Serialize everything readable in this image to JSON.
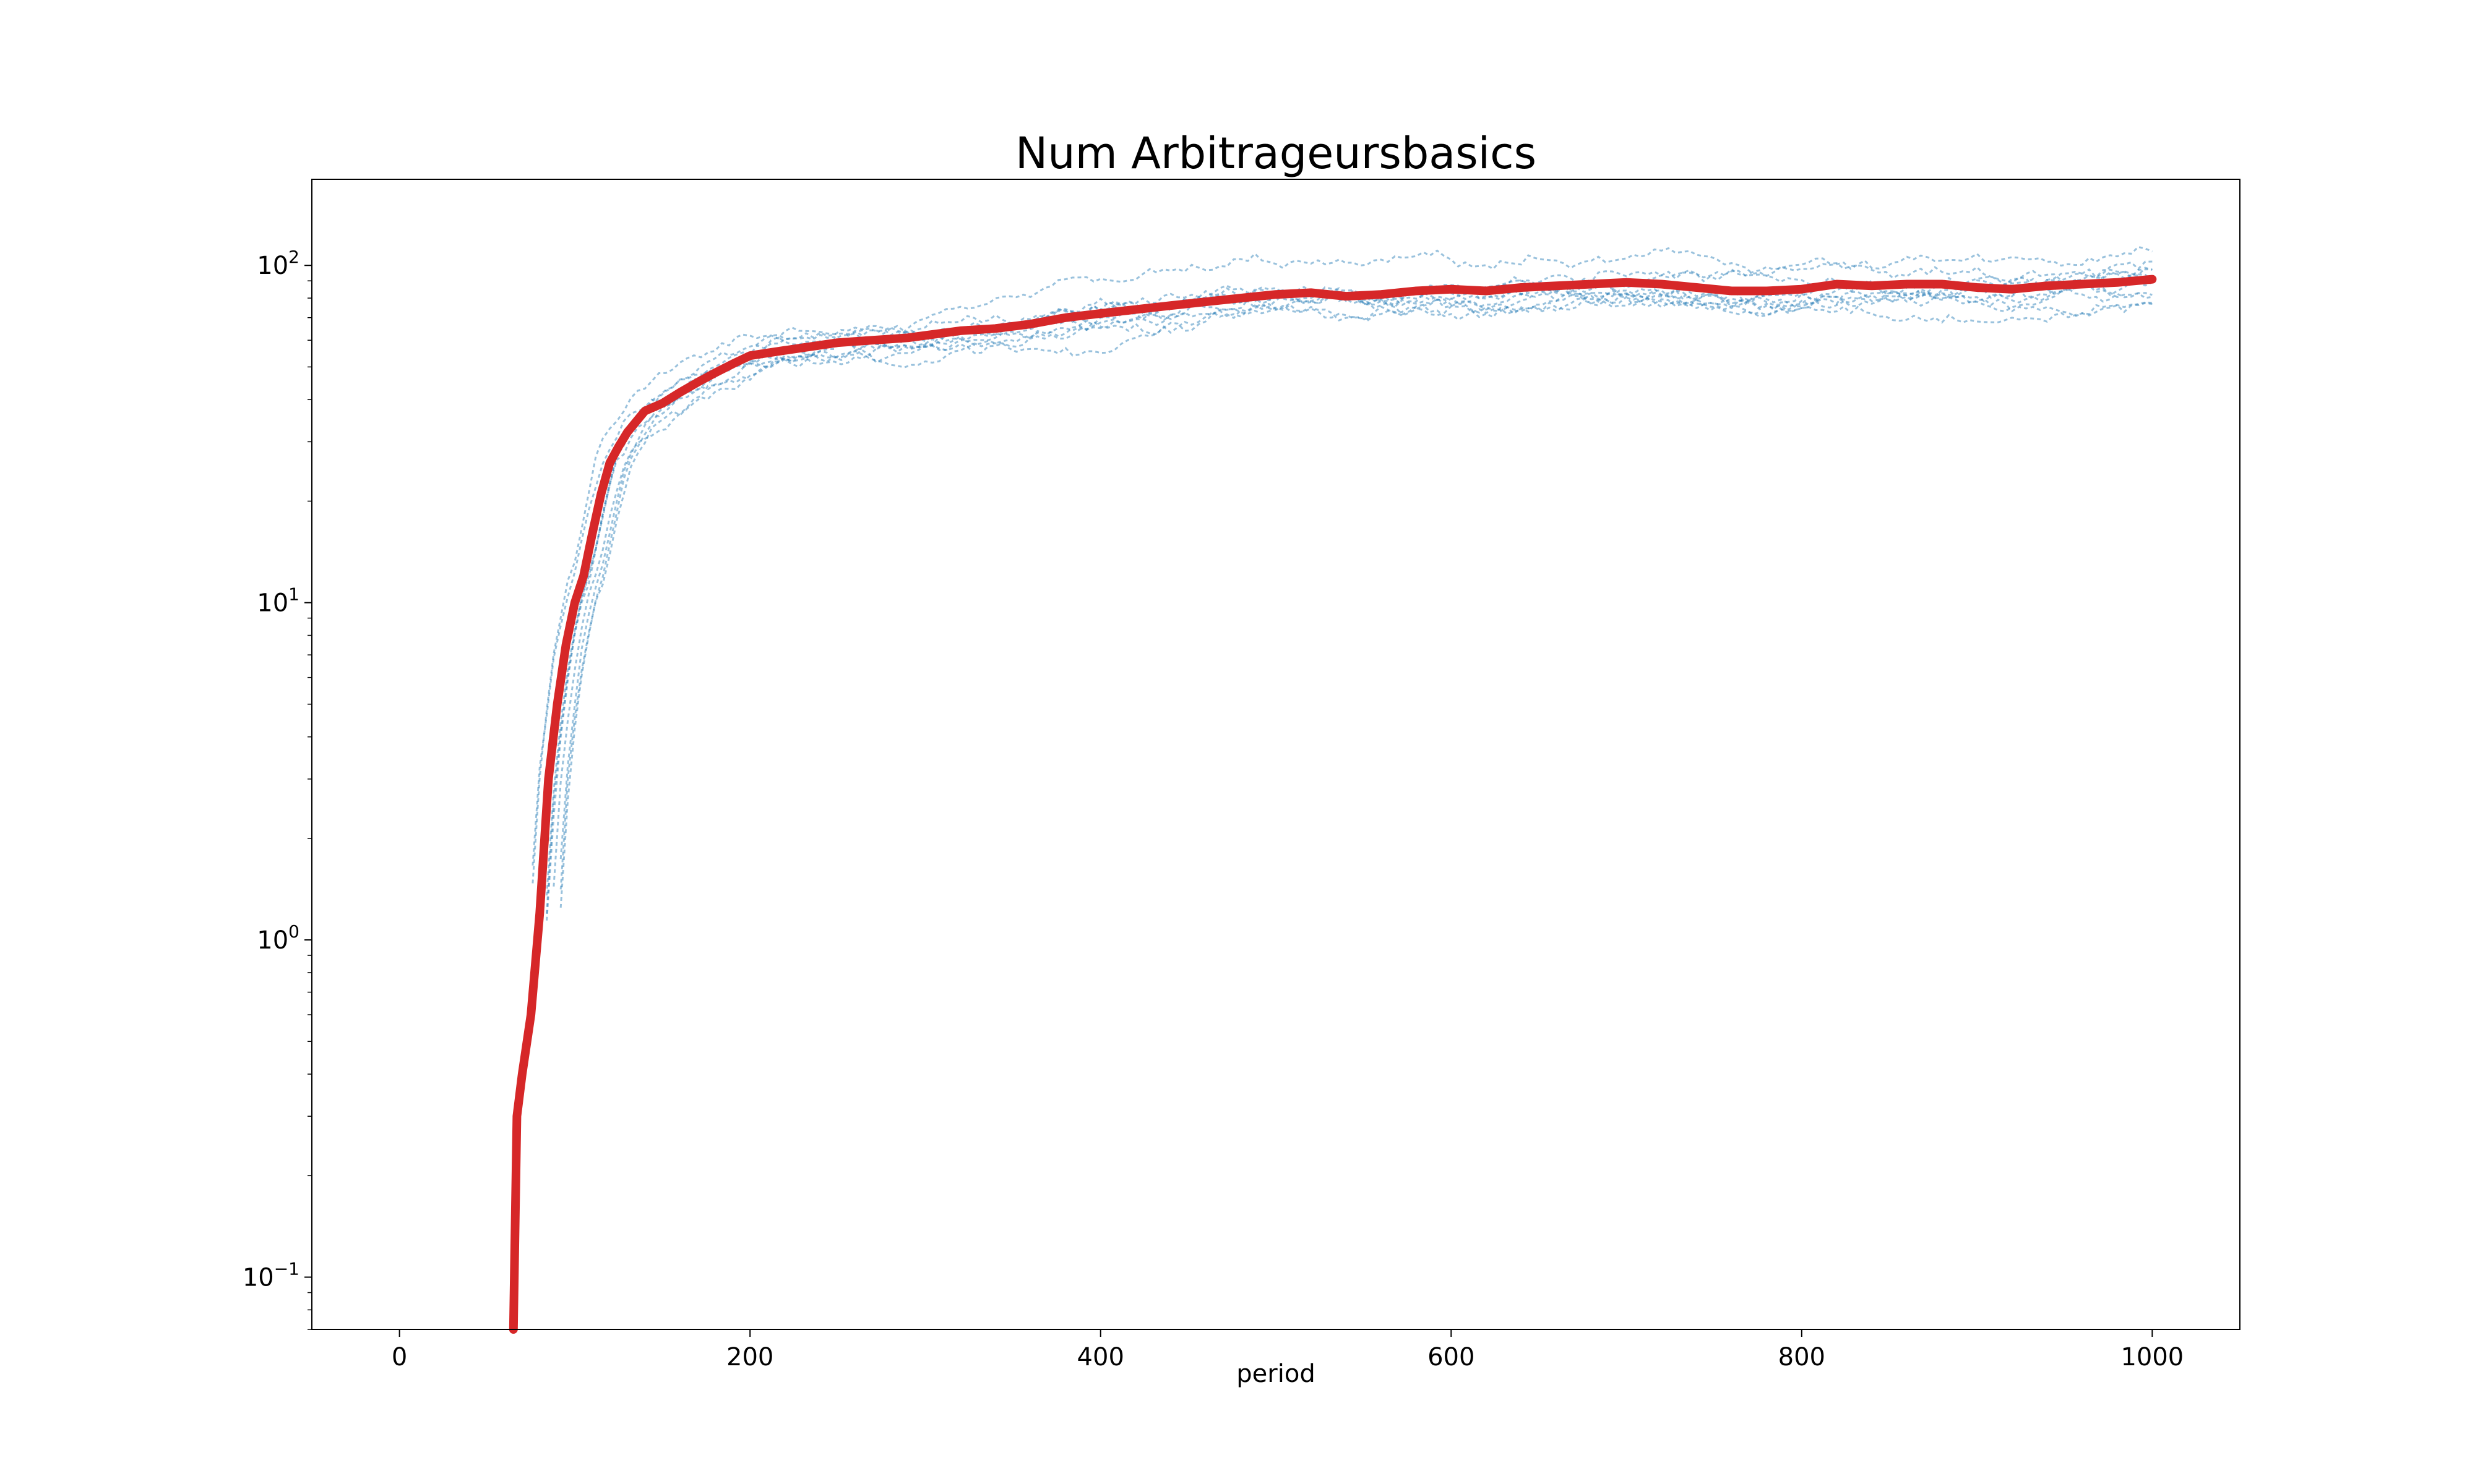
{
  "chart_data": {
    "type": "line",
    "title": "Num Arbitrageursbasics",
    "xlabel": "period",
    "ylabel": "",
    "xlim": [
      -50,
      1050
    ],
    "ylim": [
      0.07,
      180
    ],
    "yscale": "log",
    "grid": false,
    "legend": "none",
    "x_ticks": [
      {
        "value": 0,
        "label": "0"
      },
      {
        "value": 200,
        "label": "200"
      },
      {
        "value": 400,
        "label": "400"
      },
      {
        "value": 600,
        "label": "600"
      },
      {
        "value": 800,
        "label": "800"
      },
      {
        "value": 1000,
        "label": "1000"
      }
    ],
    "y_ticks": [
      {
        "value": 0.1,
        "base": "10",
        "exp": "−1"
      },
      {
        "value": 1,
        "base": "10",
        "exp": "0"
      },
      {
        "value": 10,
        "base": "10",
        "exp": "1"
      },
      {
        "value": 100,
        "base": "10",
        "exp": "2"
      }
    ],
    "colors": {
      "runs": "#1f77b4",
      "mean": "#d62728",
      "frame": "#000000"
    },
    "individual_runs": {
      "count": 10,
      "style": "dashed"
    },
    "mean_series": {
      "x": [
        65,
        67,
        70,
        75,
        80,
        85,
        90,
        95,
        100,
        105,
        110,
        115,
        120,
        125,
        130,
        140,
        150,
        160,
        170,
        180,
        190,
        200,
        210,
        220,
        230,
        240,
        250,
        260,
        270,
        280,
        290,
        300,
        310,
        320,
        340,
        360,
        380,
        400,
        420,
        440,
        460,
        480,
        500,
        520,
        540,
        560,
        580,
        600,
        620,
        640,
        660,
        680,
        700,
        720,
        740,
        760,
        780,
        800,
        820,
        840,
        860,
        880,
        900,
        920,
        940,
        960,
        980,
        1000
      ],
      "y": [
        0.07,
        0.3,
        0.4,
        0.6,
        1.2,
        3.0,
        5.0,
        7.5,
        10.0,
        12.0,
        16.0,
        21.0,
        26.0,
        29.0,
        32.0,
        37.0,
        39.0,
        42.0,
        45.0,
        48.0,
        51.0,
        54.0,
        55.0,
        56.0,
        57.0,
        58.0,
        59.0,
        59.5,
        60.0,
        60.5,
        61.0,
        62.0,
        63.0,
        64.0,
        65.0,
        67.0,
        70.0,
        72.0,
        74.0,
        76.0,
        78.0,
        80.0,
        82.0,
        83.0,
        81.0,
        82.0,
        84.0,
        85.0,
        84.0,
        86.0,
        87.0,
        88.0,
        89.0,
        88.0,
        86.0,
        84.0,
        84.0,
        85.0,
        88.0,
        87.0,
        88.0,
        88.0,
        86.0,
        85.0,
        87.0,
        88.0,
        89.0,
        91.0
      ]
    }
  }
}
